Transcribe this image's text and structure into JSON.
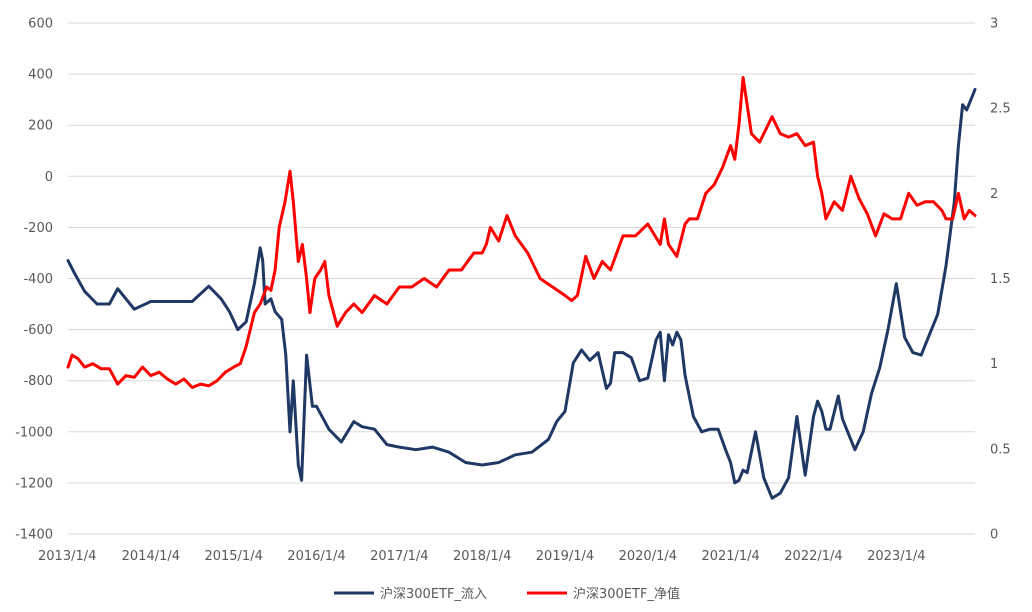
{
  "chart_data": {
    "type": "line",
    "title": "",
    "xlabel": "",
    "ylabel": "",
    "x_tick_labels": [
      "2013/1/4",
      "2014/1/4",
      "2015/1/4",
      "2016/1/4",
      "2017/1/4",
      "2018/1/4",
      "2019/1/4",
      "2020/1/4",
      "2021/1/4",
      "2022/1/4",
      "2023/1/4"
    ],
    "x_tick_years": [
      2013,
      2014,
      2015,
      2016,
      2017,
      2018,
      2019,
      2020,
      2021,
      2022,
      2023
    ],
    "xlim": [
      2013.0,
      2023.95
    ],
    "y_left": {
      "ticks": [
        600,
        400,
        200,
        0,
        -200,
        -400,
        -600,
        -800,
        -1000,
        -1200,
        -1400
      ],
      "ylim": [
        -1400,
        600
      ]
    },
    "y_right": {
      "ticks": [
        3,
        2.5,
        2,
        1.5,
        1,
        0.5,
        0
      ],
      "ylim": [
        0,
        3
      ]
    },
    "grid": true,
    "legend_position": "bottom",
    "series": [
      {
        "name": "沪深300ETF_流入",
        "axis": "left",
        "color": "#1F3864",
        "x": [
          2013.0,
          2013.08,
          2013.2,
          2013.35,
          2013.5,
          2013.6,
          2013.8,
          2014.0,
          2014.1,
          2014.3,
          2014.5,
          2014.7,
          2014.85,
          2014.95,
          2015.05,
          2015.15,
          2015.25,
          2015.32,
          2015.35,
          2015.38,
          2015.45,
          2015.5,
          2015.58,
          2015.63,
          2015.68,
          2015.72,
          2015.78,
          2015.82,
          2015.88,
          2015.95,
          2016.0,
          2016.15,
          2016.3,
          2016.45,
          2016.55,
          2016.7,
          2016.85,
          2017.0,
          2017.2,
          2017.4,
          2017.6,
          2017.8,
          2018.0,
          2018.2,
          2018.4,
          2018.6,
          2018.8,
          2018.9,
          2019.0,
          2019.1,
          2019.2,
          2019.3,
          2019.4,
          2019.5,
          2019.55,
          2019.6,
          2019.7,
          2019.8,
          2019.9,
          2020.0,
          2020.1,
          2020.15,
          2020.2,
          2020.25,
          2020.3,
          2020.35,
          2020.4,
          2020.45,
          2020.55,
          2020.65,
          2020.75,
          2020.85,
          2020.95,
          2021.0,
          2021.05,
          2021.1,
          2021.15,
          2021.2,
          2021.3,
          2021.4,
          2021.5,
          2021.6,
          2021.7,
          2021.8,
          2021.9,
          2022.0,
          2022.05,
          2022.1,
          2022.15,
          2022.2,
          2022.3,
          2022.35,
          2022.4,
          2022.5,
          2022.6,
          2022.7,
          2022.8,
          2022.9,
          2023.0,
          2023.1,
          2023.2,
          2023.3,
          2023.4,
          2023.5,
          2023.6,
          2023.7,
          2023.75,
          2023.8,
          2023.85,
          2023.9,
          2023.95
        ],
        "values": [
          -330,
          -380,
          -450,
          -500,
          -500,
          -440,
          -520,
          -490,
          -490,
          -490,
          -490,
          -430,
          -480,
          -530,
          -600,
          -570,
          -420,
          -280,
          -330,
          -500,
          -480,
          -530,
          -560,
          -700,
          -1000,
          -800,
          -1130,
          -1190,
          -700,
          -900,
          -900,
          -990,
          -1040,
          -960,
          -980,
          -990,
          -1050,
          -1060,
          -1070,
          -1060,
          -1080,
          -1120,
          -1130,
          -1120,
          -1090,
          -1080,
          -1030,
          -960,
          -920,
          -730,
          -680,
          -720,
          -690,
          -830,
          -810,
          -690,
          -690,
          -710,
          -800,
          -790,
          -640,
          -610,
          -800,
          -620,
          -660,
          -610,
          -640,
          -780,
          -940,
          -1000,
          -990,
          -990,
          -1080,
          -1120,
          -1200,
          -1190,
          -1150,
          -1160,
          -1000,
          -1180,
          -1260,
          -1240,
          -1180,
          -940,
          -1170,
          -940,
          -880,
          -920,
          -990,
          -990,
          -860,
          -950,
          -990,
          -1070,
          -1000,
          -850,
          -750,
          -600,
          -420,
          -630,
          -690,
          -700,
          -620,
          -540,
          -350,
          -100,
          120,
          280,
          260,
          300,
          340
        ]
      },
      {
        "name": "沪深300ETF_净值",
        "axis": "right",
        "color": "#FF0000",
        "x": [
          2013.0,
          2013.05,
          2013.12,
          2013.2,
          2013.3,
          2013.4,
          2013.5,
          2013.6,
          2013.7,
          2013.8,
          2013.9,
          2014.0,
          2014.1,
          2014.2,
          2014.3,
          2014.4,
          2014.5,
          2014.6,
          2014.7,
          2014.8,
          2014.9,
          2015.0,
          2015.08,
          2015.15,
          2015.25,
          2015.32,
          2015.4,
          2015.45,
          2015.5,
          2015.55,
          2015.62,
          2015.68,
          2015.72,
          2015.78,
          2015.83,
          2015.88,
          2015.92,
          2015.98,
          2016.05,
          2016.1,
          2016.15,
          2016.25,
          2016.35,
          2016.45,
          2016.55,
          2016.7,
          2016.85,
          2017.0,
          2017.15,
          2017.3,
          2017.45,
          2017.6,
          2017.75,
          2017.9,
          2018.0,
          2018.05,
          2018.1,
          2018.2,
          2018.3,
          2018.4,
          2018.55,
          2018.7,
          2018.85,
          2019.0,
          2019.08,
          2019.15,
          2019.25,
          2019.35,
          2019.45,
          2019.55,
          2019.7,
          2019.85,
          2020.0,
          2020.15,
          2020.2,
          2020.25,
          2020.35,
          2020.45,
          2020.5,
          2020.6,
          2020.7,
          2020.8,
          2020.9,
          2021.0,
          2021.05,
          2021.1,
          2021.15,
          2021.25,
          2021.35,
          2021.5,
          2021.6,
          2021.7,
          2021.8,
          2021.9,
          2022.0,
          2022.05,
          2022.1,
          2022.15,
          2022.25,
          2022.35,
          2022.45,
          2022.55,
          2022.65,
          2022.75,
          2022.85,
          2022.95,
          2023.05,
          2023.15,
          2023.25,
          2023.35,
          2023.45,
          2023.55,
          2023.6,
          2023.68,
          2023.75,
          2023.82,
          2023.88,
          2023.95
        ],
        "values": [
          0.98,
          1.05,
          1.03,
          0.98,
          1.0,
          0.97,
          0.97,
          0.88,
          0.93,
          0.92,
          0.98,
          0.93,
          0.95,
          0.91,
          0.88,
          0.91,
          0.86,
          0.88,
          0.87,
          0.9,
          0.95,
          0.98,
          1.0,
          1.1,
          1.3,
          1.35,
          1.45,
          1.43,
          1.55,
          1.8,
          1.95,
          2.13,
          1.95,
          1.6,
          1.7,
          1.5,
          1.3,
          1.5,
          1.55,
          1.6,
          1.4,
          1.22,
          1.3,
          1.35,
          1.3,
          1.4,
          1.35,
          1.45,
          1.45,
          1.5,
          1.45,
          1.55,
          1.55,
          1.65,
          1.65,
          1.7,
          1.8,
          1.72,
          1.87,
          1.75,
          1.65,
          1.5,
          1.45,
          1.4,
          1.37,
          1.4,
          1.63,
          1.5,
          1.6,
          1.55,
          1.75,
          1.75,
          1.82,
          1.7,
          1.85,
          1.7,
          1.63,
          1.82,
          1.85,
          1.85,
          2.0,
          2.05,
          2.15,
          2.28,
          2.2,
          2.4,
          2.68,
          2.35,
          2.3,
          2.45,
          2.35,
          2.33,
          2.35,
          2.28,
          2.3,
          2.1,
          2.0,
          1.85,
          1.95,
          1.9,
          2.1,
          1.97,
          1.88,
          1.75,
          1.88,
          1.85,
          1.85,
          2.0,
          1.93,
          1.95,
          1.95,
          1.9,
          1.85,
          1.85,
          2.0,
          1.85,
          1.9,
          1.87
        ]
      }
    ]
  }
}
